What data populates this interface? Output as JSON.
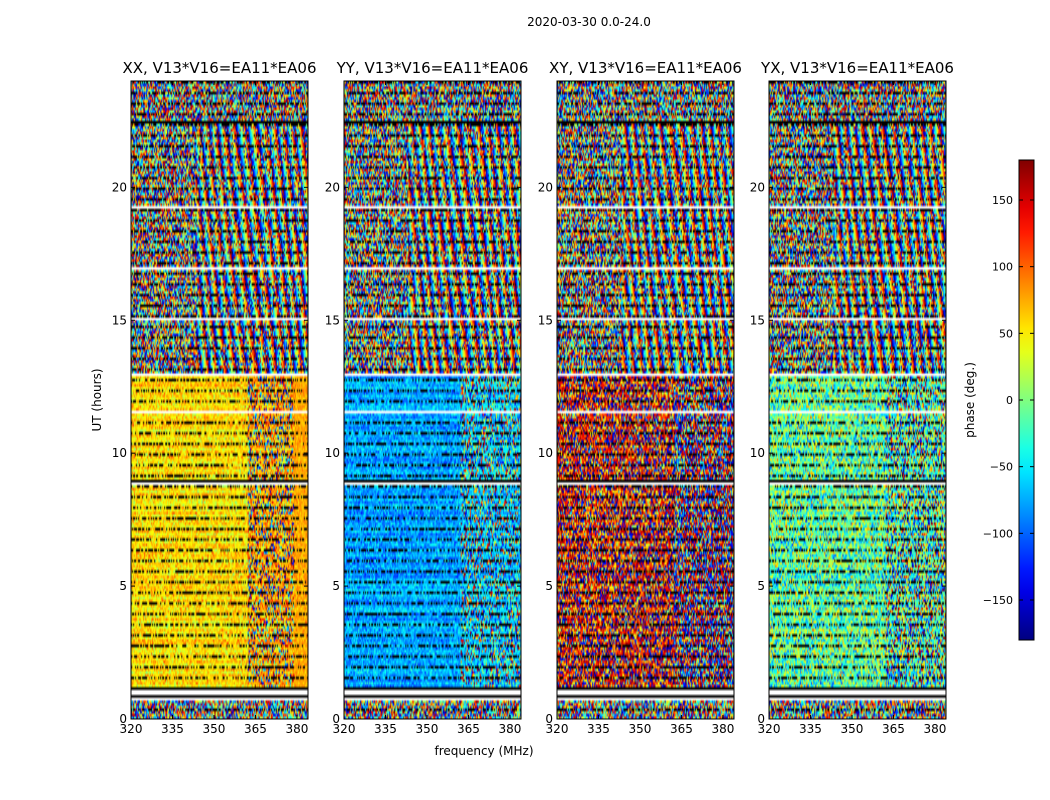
{
  "chart_data": {
    "type": "heatmap",
    "suptitle": "2020-03-30 0.0-24.0",
    "xlabel": "frequency (MHz)",
    "ylabel": "UT (hours)",
    "xlim": [
      320,
      384
    ],
    "ylim": [
      0,
      24
    ],
    "x_ticks": [
      320,
      335,
      350,
      365,
      380
    ],
    "x_tick_labels": [
      "320",
      "335",
      "350",
      "365",
      "380"
    ],
    "y_ticks": [
      0,
      5,
      10,
      15,
      20
    ],
    "y_tick_labels": [
      "0",
      "5",
      "10",
      "15",
      "20"
    ],
    "panels": [
      {
        "title": "XX, V13*V16=EA11*EA06",
        "polarization": "XX",
        "dominant_low_band_phase_deg": 55,
        "dominant_high_band_phase_deg": 75,
        "noise_deg": 35
      },
      {
        "title": "YY, V13*V16=EA11*EA06",
        "polarization": "YY",
        "dominant_low_band_phase_deg": -75,
        "dominant_high_band_phase_deg": -60,
        "noise_deg": 35
      },
      {
        "title": "XY, V13*V16=EA11*EA06",
        "polarization": "XY",
        "dominant_low_band_phase_deg": 140,
        "dominant_high_band_phase_deg": -175,
        "noise_deg": 120
      },
      {
        "title": "YX, V13*V16=EA11*EA06",
        "polarization": "YX",
        "dominant_low_band_phase_deg": -10,
        "dominant_high_band_phase_deg": -20,
        "noise_deg": 80
      }
    ],
    "band_split_mhz": 362,
    "flagged_gaps_hours": [
      [
        0.7,
        1.2
      ],
      [
        1.45,
        1.5
      ],
      [
        8.85,
        9.0
      ],
      [
        11.5,
        11.55
      ],
      [
        12.15,
        12.2
      ],
      [
        12.9,
        13.0
      ],
      [
        15.0,
        15.1
      ],
      [
        16.9,
        17.0
      ],
      [
        19.25,
        19.3
      ],
      [
        22.4,
        22.5
      ]
    ],
    "colorbar": {
      "label": "phase (deg.)",
      "range": [
        -180,
        180
      ],
      "ticks": [
        150,
        100,
        50,
        0,
        -50,
        -100,
        -150
      ],
      "tick_labels": [
        "150",
        "100",
        "50",
        "0",
        "−50",
        "−100",
        "−150"
      ],
      "colormap": "jet"
    }
  }
}
